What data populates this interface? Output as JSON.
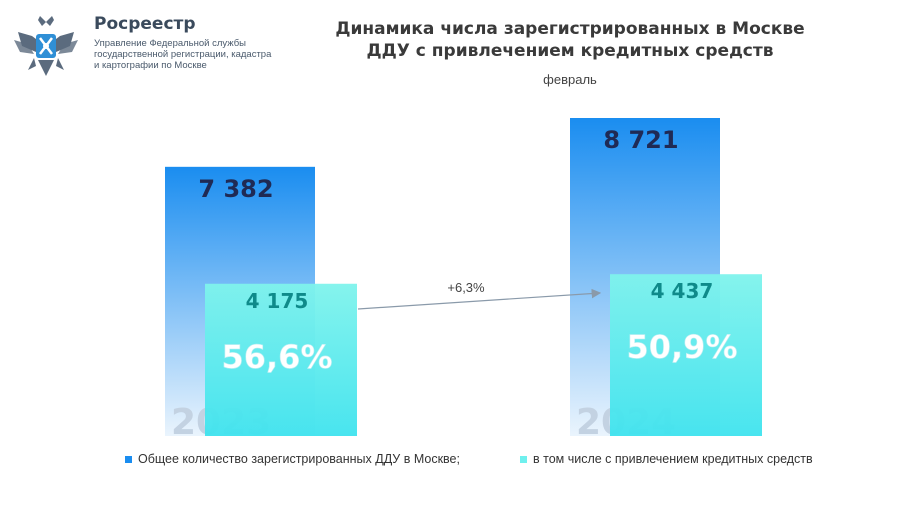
{
  "header": {
    "org_name": "Росреестр",
    "org_sub": "Управление Федеральной службы государственной регистрации, кадастра и картографии по Москве",
    "title_line1": "Динамика числа зарегистрированных в Москве",
    "title_line2": "ДДУ с привлечением кредитных средств",
    "subtitle": "февраль"
  },
  "colors": {
    "total_top": "#1a8df0",
    "total_bottom": "#eaf4fd",
    "credit_top": "#7ff3ec",
    "credit_bottom": "#3fe3ee",
    "value_total": "#1f2a55",
    "value_credit": "#0f8a8a",
    "percent": "#ffffff",
    "year": "#c3d2e2",
    "arrow": "#8a9aaa"
  },
  "chart_data": {
    "type": "bar",
    "categories": [
      "2023",
      "2024"
    ],
    "series": [
      {
        "name": "Общее количество зарегистрированных ДДУ в Москве;",
        "values": [
          7382,
          8721
        ],
        "labels": [
          "7 382",
          "8 721"
        ]
      },
      {
        "name": "в том числе с привлечением кредитных средств",
        "values": [
          4175,
          4437
        ],
        "labels": [
          "4 175",
          "4 437"
        ]
      }
    ],
    "percent_labels": [
      "56,6%",
      "50,9%"
    ],
    "change_label": "+6,3%",
    "legend": "bottom"
  }
}
